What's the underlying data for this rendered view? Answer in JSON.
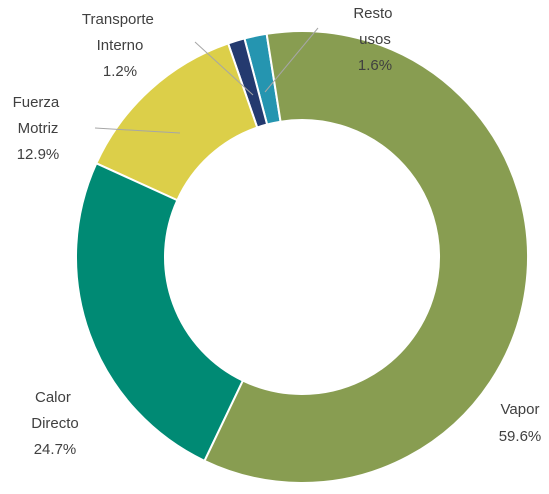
{
  "chart_data": {
    "type": "donut",
    "categories": [
      "Vapor",
      "Calor Directo",
      "Fuerza Motriz",
      "Transporte Interno",
      "Resto usos"
    ],
    "values": [
      59.6,
      24.7,
      12.9,
      1.2,
      1.6
    ],
    "value_labels": [
      "59.6%",
      "24.7%",
      "12.9%",
      "1.2%",
      "1.6%"
    ],
    "colors": [
      "#889d51",
      "#008a74",
      "#dccf49",
      "#243a6f",
      "#2595b0"
    ]
  }
}
